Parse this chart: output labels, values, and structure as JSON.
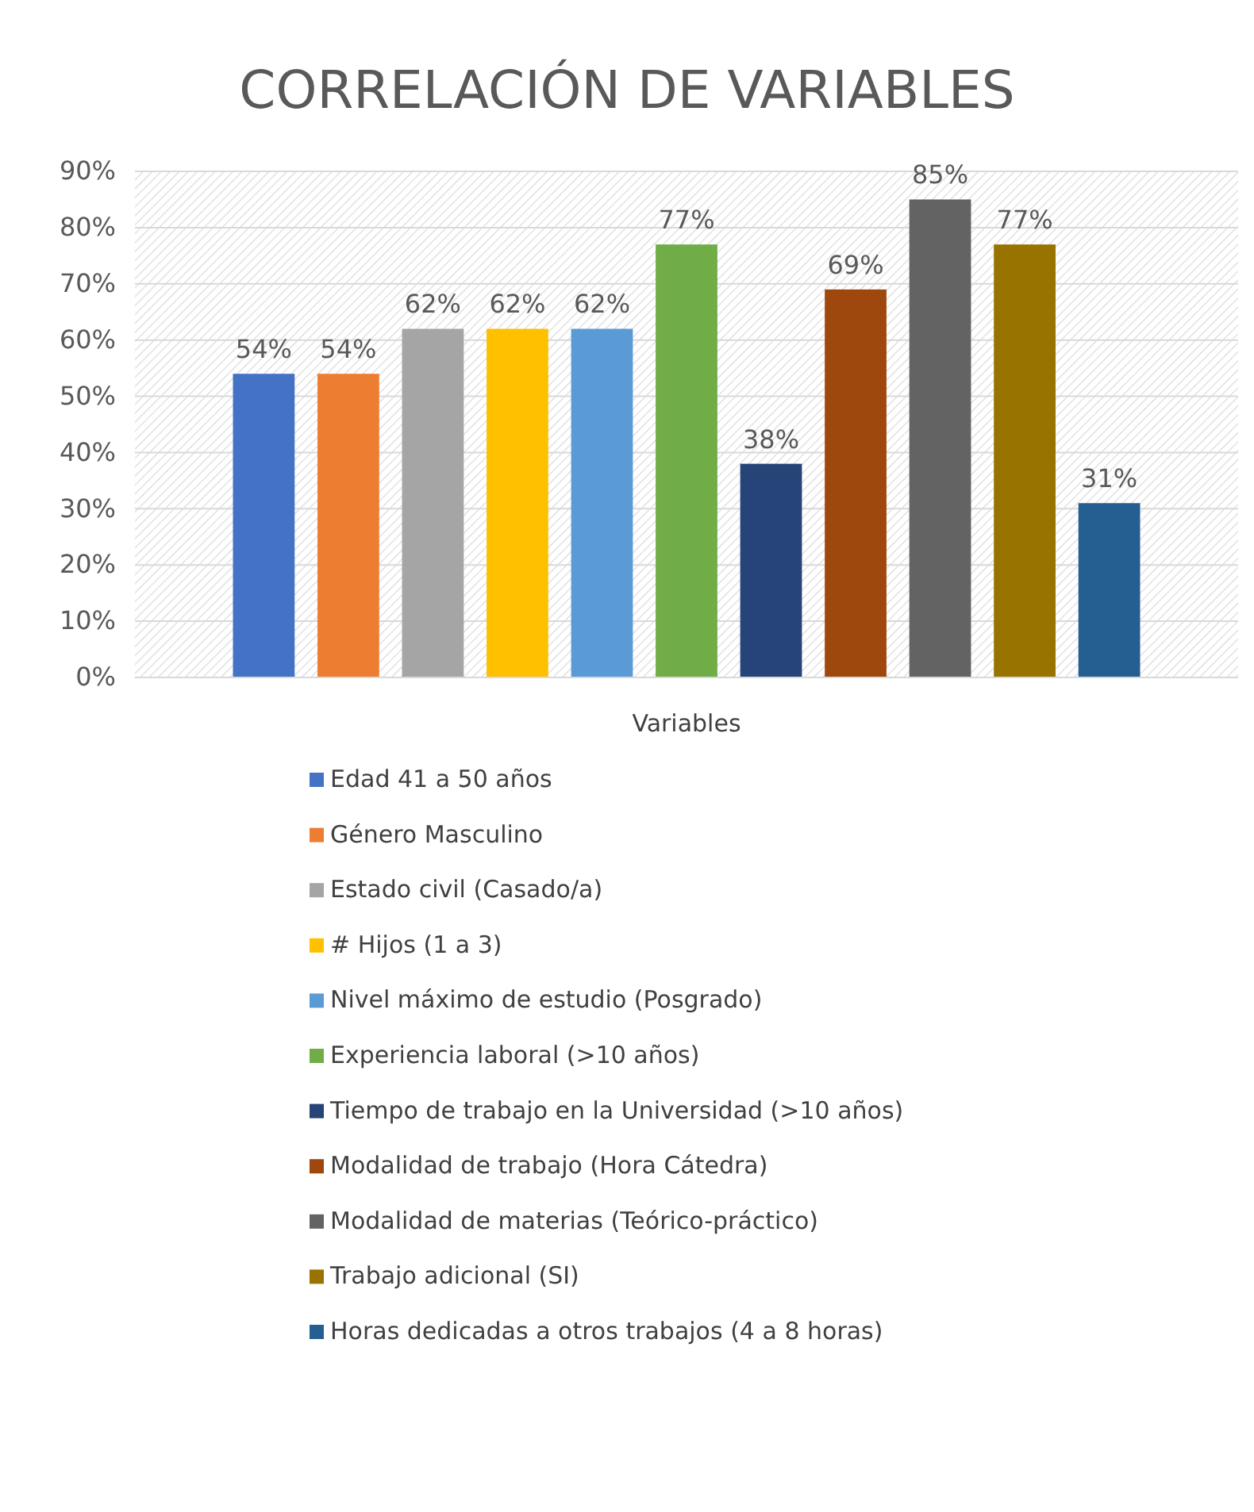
{
  "chart_data": {
    "type": "bar",
    "title": "CORRELACIÓN DE VARIABLES",
    "xlabel": "Variables",
    "categories": [
      null
    ],
    "series": [
      {
        "name": "Edad 41 a 50 años",
        "color": "#4472c4",
        "values": [
          54
        ]
      },
      {
        "name": "Género Masculino",
        "color": "#ed7d31",
        "values": [
          54
        ]
      },
      {
        "name": "Estado civil (Casado/a)",
        "color": "#a5a5a5",
        "values": [
          62
        ]
      },
      {
        "name": "# Hijos (1 a 3)",
        "color": "#ffc000",
        "values": [
          62
        ]
      },
      {
        "name": "Nivel máximo de estudio (Posgrado)",
        "color": "#5b9bd5",
        "values": [
          62
        ]
      },
      {
        "name": "Experiencia laboral (>10 años)",
        "color": "#70ad47",
        "values": [
          77
        ]
      },
      {
        "name": "Tiempo de trabajo en la Universidad (>10 años)",
        "color": "#264478",
        "values": [
          38
        ]
      },
      {
        "name": "Modalidad de trabajo (Hora Cátedra)",
        "color": "#9e480e",
        "values": [
          69
        ]
      },
      {
        "name": "Modalidad de materias (Teórico-práctico)",
        "color": "#636363",
        "values": [
          85
        ]
      },
      {
        "name": "Trabajo adicional (SI)",
        "color": "#997300",
        "values": [
          77
        ]
      },
      {
        "name": "Horas dedicadas a otros trabajos (4 a 8 horas)",
        "color": "#255e91",
        "values": [
          31
        ]
      }
    ],
    "value_labels": [
      "54%",
      "54%",
      "62%",
      "62%",
      "62%",
      "77%",
      "38%",
      "69%",
      "85%",
      "77%",
      "31%"
    ],
    "ylim": [
      0,
      90
    ],
    "yticks": [
      {
        "value": 0,
        "label": "0%"
      },
      {
        "value": 10,
        "label": "10%"
      },
      {
        "value": 20,
        "label": "20%"
      },
      {
        "value": 30,
        "label": "30%"
      },
      {
        "value": 40,
        "label": "40%"
      },
      {
        "value": 50,
        "label": "50%"
      },
      {
        "value": 60,
        "label": "60%"
      },
      {
        "value": 70,
        "label": "70%"
      },
      {
        "value": 80,
        "label": "80%"
      },
      {
        "value": 90,
        "label": "90%"
      }
    ],
    "grid": "y",
    "legend": "bottom"
  }
}
